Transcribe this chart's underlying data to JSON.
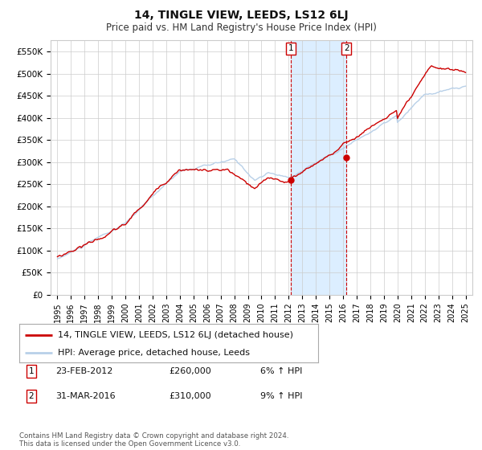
{
  "title": "14, TINGLE VIEW, LEEDS, LS12 6LJ",
  "subtitle": "Price paid vs. HM Land Registry's House Price Index (HPI)",
  "ylim": [
    0,
    575000
  ],
  "yticks": [
    0,
    50000,
    100000,
    150000,
    200000,
    250000,
    300000,
    350000,
    400000,
    450000,
    500000,
    550000
  ],
  "ytick_labels": [
    "£0",
    "£50K",
    "£100K",
    "£150K",
    "£200K",
    "£250K",
    "£300K",
    "£350K",
    "£400K",
    "£450K",
    "£500K",
    "£550K"
  ],
  "hpi_color": "#b8d0e8",
  "price_color": "#cc0000",
  "marker_color": "#cc0000",
  "grid_color": "#cccccc",
  "background_color": "#ffffff",
  "shading_color": "#dceeff",
  "transaction1": {
    "date_label": "23-FEB-2012",
    "price": 260000,
    "hpi_pct": "6%",
    "x": 2012.14
  },
  "transaction2": {
    "date_label": "31-MAR-2016",
    "price": 310000,
    "hpi_pct": "9%",
    "x": 2016.25
  },
  "legend_label_price": "14, TINGLE VIEW, LEEDS, LS12 6LJ (detached house)",
  "legend_label_hpi": "HPI: Average price, detached house, Leeds",
  "footer": "Contains HM Land Registry data © Crown copyright and database right 2024.\nThis data is licensed under the Open Government Licence v3.0.",
  "title_fontsize": 10,
  "subtitle_fontsize": 8.5,
  "tick_fontsize": 7.5,
  "legend_fontsize": 8
}
